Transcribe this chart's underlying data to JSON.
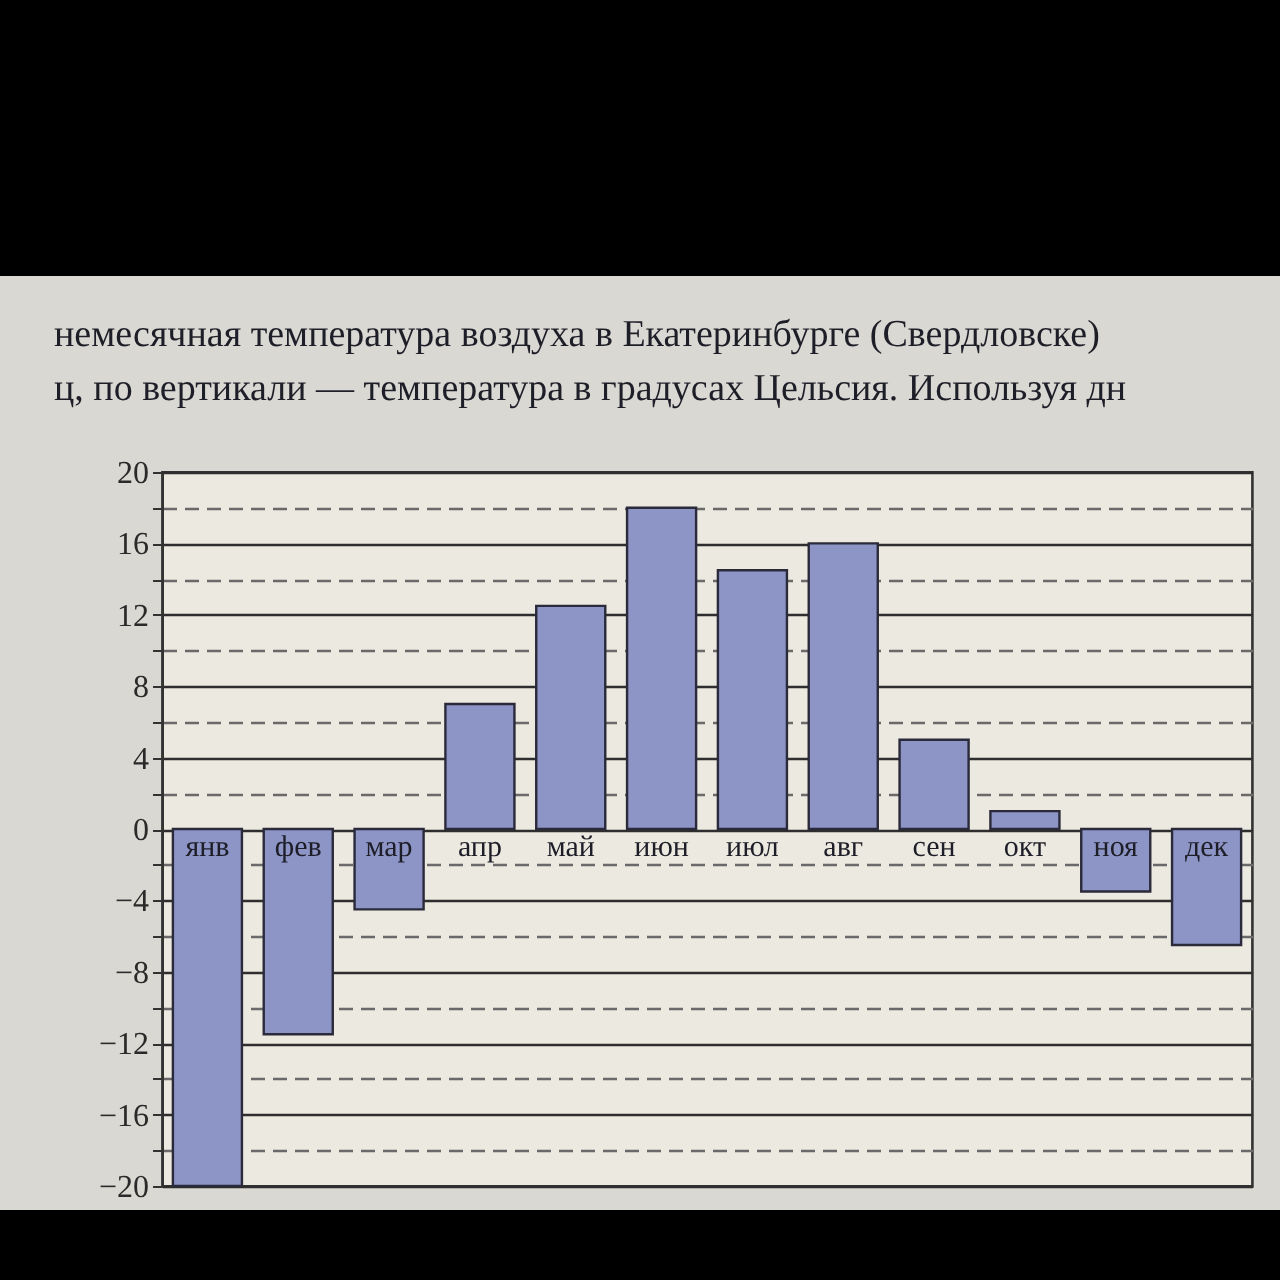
{
  "chart_data": {
    "type": "bar",
    "title": "немесячная температура воздуха в Екатеринбурге (Свердловске)",
    "subtitle": "ц, по вертикали — температура в градусах Цельсия. Используя дн",
    "categories": [
      "янв",
      "фев",
      "мар",
      "апр",
      "май",
      "июн",
      "июл",
      "авг",
      "сен",
      "окт",
      "ноя",
      "дек"
    ],
    "values": [
      -20,
      -11.5,
      -4.5,
      7,
      12.5,
      18,
      14.5,
      16,
      5,
      1,
      -3.5,
      -6.5
    ],
    "color": "#8d94c6",
    "ylim": [
      -20,
      20
    ],
    "yticks": [
      -20,
      {
        "value": -18,
        "label": null
      },
      -16,
      {
        "value": -14,
        "label": null
      },
      -12,
      {
        "value": -10,
        "label": null
      },
      -8,
      {
        "value": -6,
        "label": null
      },
      -4,
      {
        "value": -2,
        "label": null
      },
      0,
      {
        "value": 2,
        "label": null
      },
      4,
      {
        "value": 6,
        "label": null
      },
      8,
      {
        "value": 10,
        "label": null
      },
      12,
      {
        "value": 14,
        "label": null
      },
      16,
      {
        "value": 18,
        "label": null
      },
      20
    ],
    "grid": "y"
  }
}
